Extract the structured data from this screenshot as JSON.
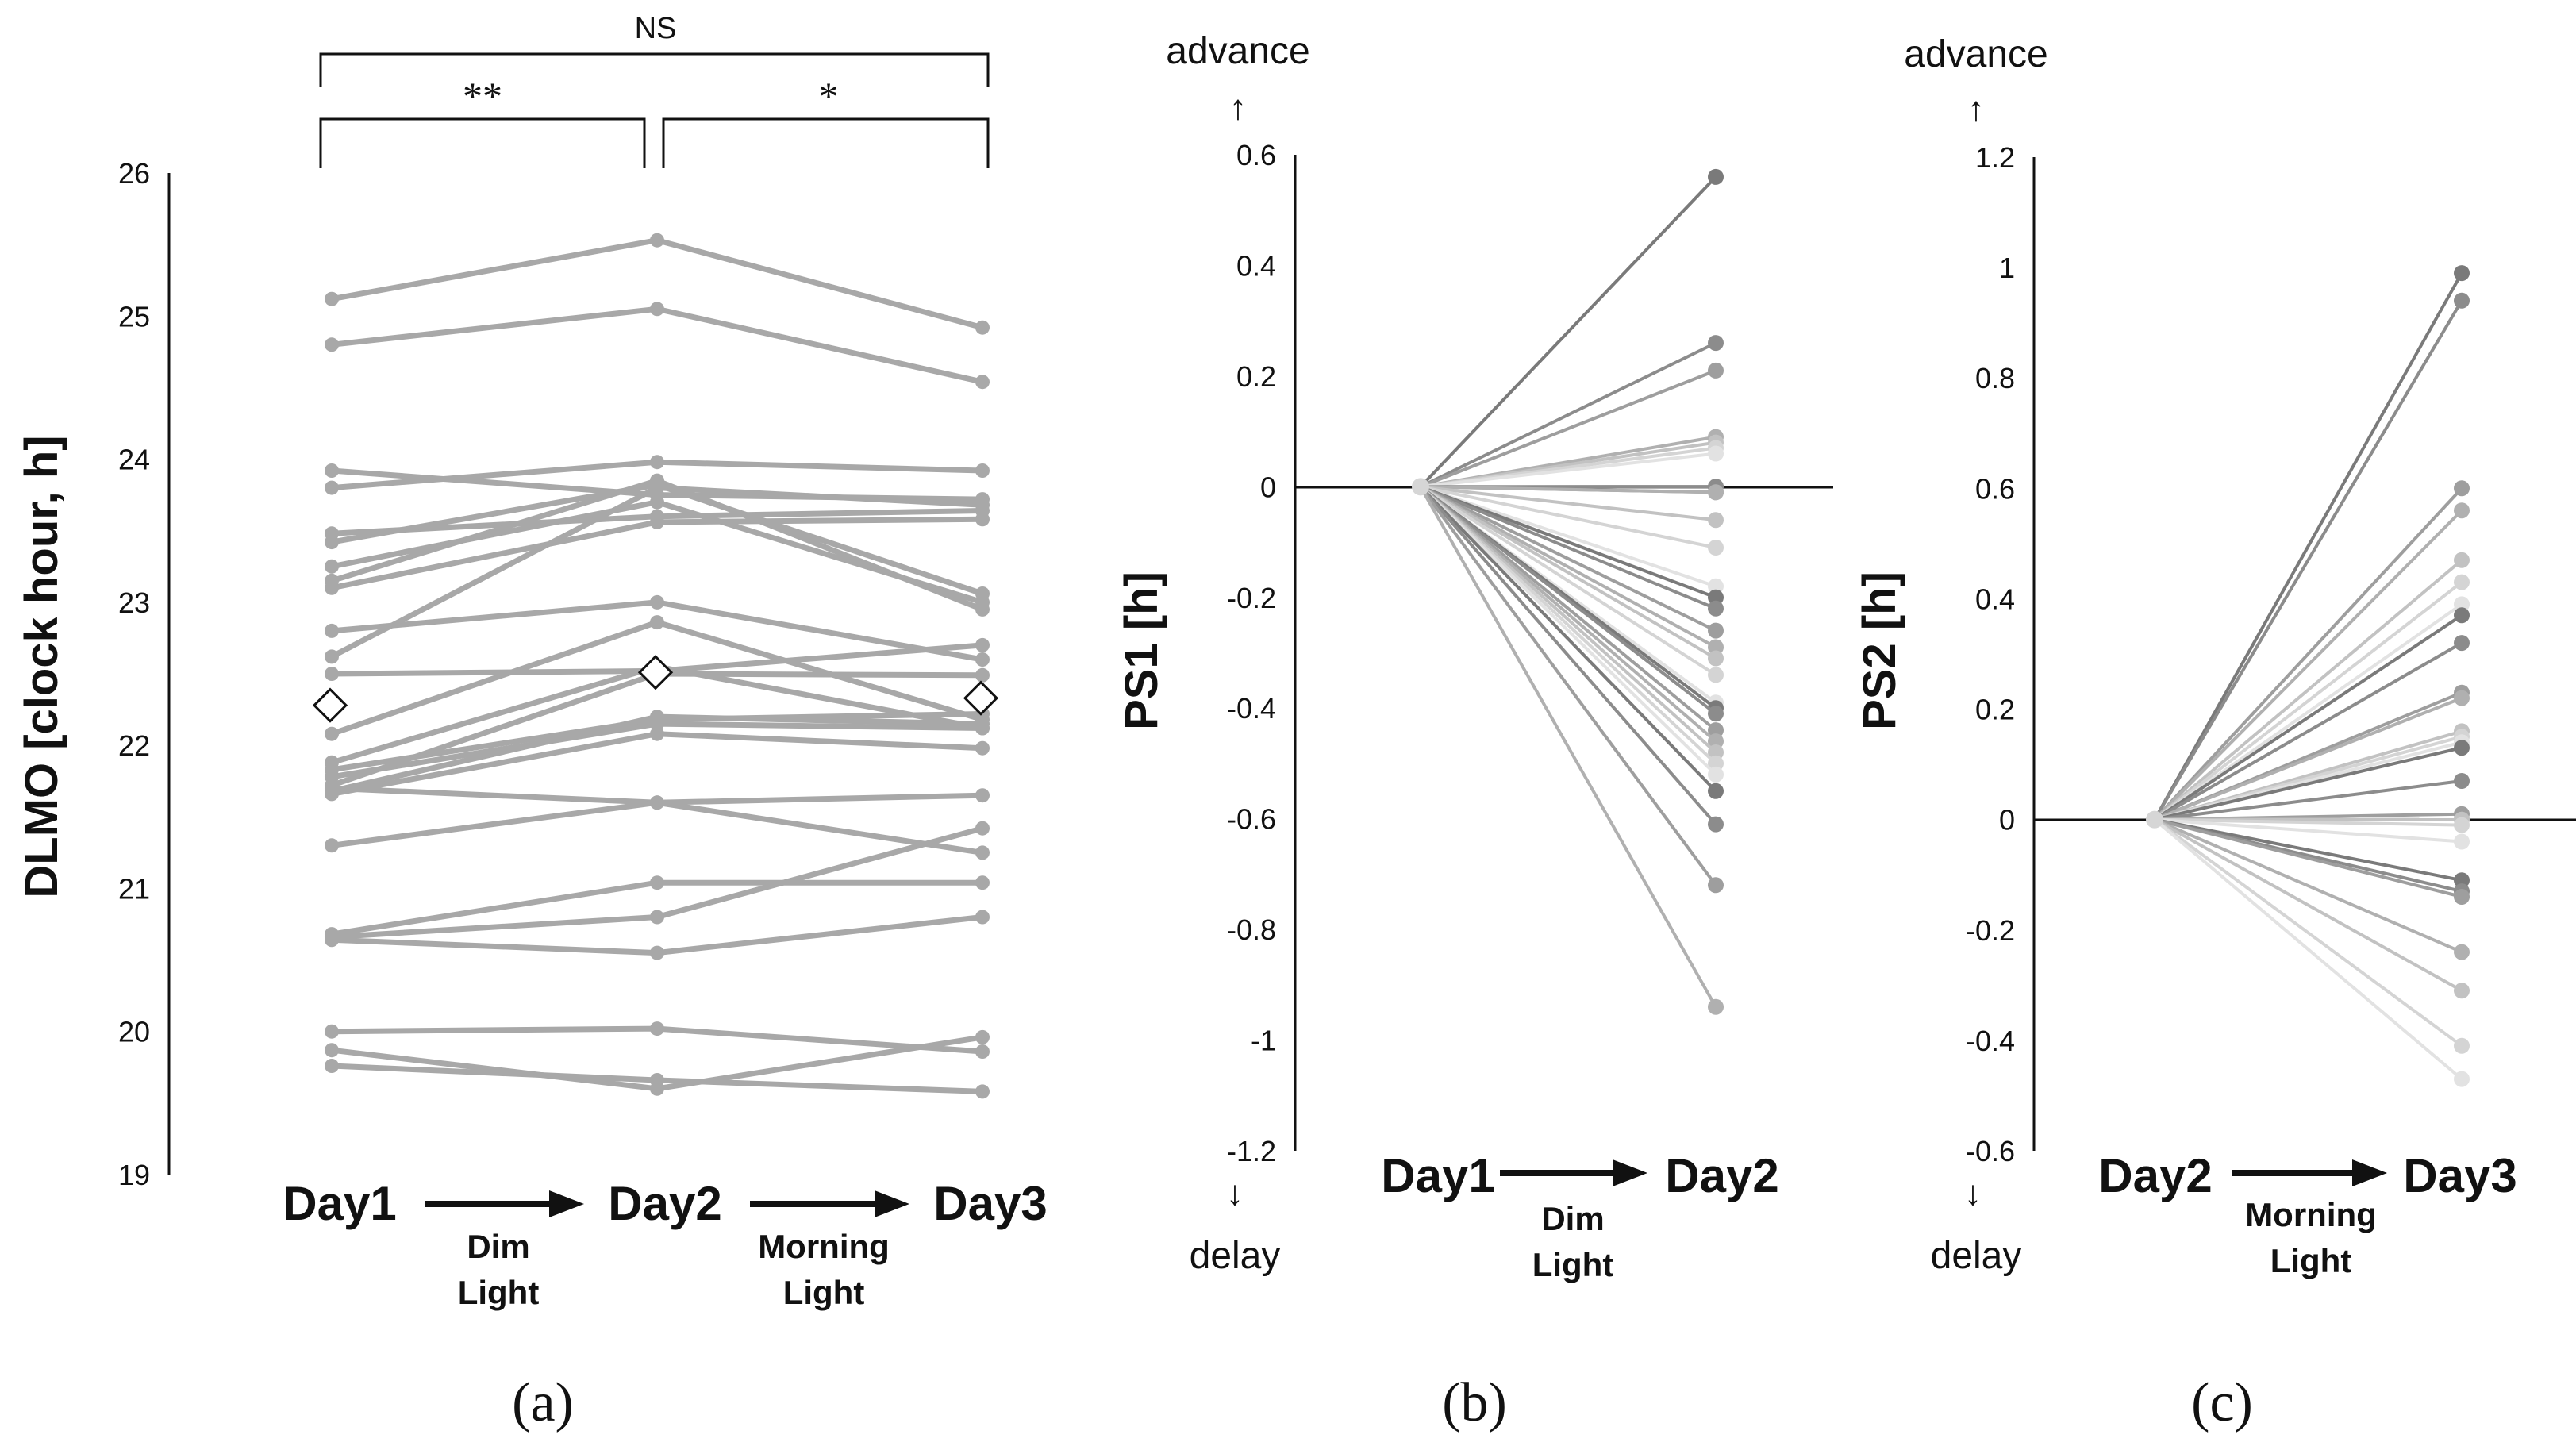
{
  "colors": {
    "line_a": "#a8a8a8",
    "axis": "#111111",
    "mean_fill": "#ffffff",
    "greys": [
      "#7a7a7a",
      "#8c8c8c",
      "#9e9e9e",
      "#b0b0b0",
      "#c2c2c2",
      "#d4d4d4",
      "#e2e2e2"
    ]
  },
  "chart_data": [
    {
      "id": "a",
      "type": "line",
      "panel_label": "(a)",
      "ylabel": "DLMO [clock hour, h]",
      "ylim": [
        19,
        26
      ],
      "yticks": [
        "19",
        "20",
        "21",
        "22",
        "23",
        "24",
        "25",
        "26"
      ],
      "x": [
        "Day1",
        "Day2",
        "Day3"
      ],
      "transitions": [
        [
          "Dim",
          "Light"
        ],
        [
          "Morning",
          "Light"
        ]
      ],
      "significance": [
        {
          "label": "**",
          "from": "Day1",
          "to": "Day2"
        },
        {
          "label": "*",
          "from": "Day2",
          "to": "Day3"
        },
        {
          "label": "NS",
          "from": "Day1",
          "to": "Day3"
        }
      ],
      "series": [
        {
          "values": [
            25.12,
            25.53,
            24.92
          ]
        },
        {
          "values": [
            24.8,
            25.05,
            24.54
          ]
        },
        {
          "values": [
            23.92,
            23.75,
            23.72
          ]
        },
        {
          "values": [
            23.8,
            23.98,
            23.92
          ]
        },
        {
          "values": [
            23.48,
            23.6,
            23.64
          ]
        },
        {
          "values": [
            23.42,
            23.82,
            23.06
          ]
        },
        {
          "values": [
            23.25,
            23.7,
            23.0
          ]
        },
        {
          "values": [
            23.15,
            23.85,
            22.95
          ]
        },
        {
          "values": [
            23.1,
            23.56,
            23.58
          ]
        },
        {
          "values": [
            22.8,
            23.0,
            22.6
          ]
        },
        {
          "values": [
            22.62,
            23.8,
            23.68
          ]
        },
        {
          "values": [
            22.5,
            22.52,
            22.7
          ]
        },
        {
          "values": [
            22.08,
            22.86,
            22.18
          ]
        },
        {
          "values": [
            21.88,
            22.55,
            22.12
          ]
        },
        {
          "values": [
            21.83,
            22.18,
            22.22
          ]
        },
        {
          "values": [
            21.78,
            22.15,
            22.12
          ]
        },
        {
          "values": [
            21.72,
            22.5,
            22.49
          ]
        },
        {
          "values": [
            21.68,
            22.2,
            22.15
          ]
        },
        {
          "values": [
            21.66,
            22.08,
            21.98
          ]
        },
        {
          "values": [
            21.7,
            21.6,
            21.65
          ]
        },
        {
          "values": [
            21.3,
            21.6,
            21.25
          ]
        },
        {
          "values": [
            20.68,
            21.04,
            21.04
          ]
        },
        {
          "values": [
            20.66,
            20.8,
            21.42
          ]
        },
        {
          "values": [
            20.64,
            20.55,
            20.8
          ]
        },
        {
          "values": [
            20.0,
            20.02,
            19.86
          ]
        },
        {
          "values": [
            19.87,
            19.6,
            19.96
          ]
        },
        {
          "values": [
            19.76,
            19.66,
            19.58
          ]
        }
      ],
      "mean": [
        22.28,
        22.51,
        22.33
      ]
    },
    {
      "id": "b",
      "type": "line",
      "panel_label": "(b)",
      "ylabel": "PS1 [h]",
      "ylim": [
        -1.2,
        0.6
      ],
      "yticks": [
        "-1.2",
        "-1",
        "-0.8",
        "-0.6",
        "-0.4",
        "-0.2",
        "0",
        "0.2",
        "0.4",
        "0.6"
      ],
      "x": [
        "Day1",
        "Day2"
      ],
      "transition": [
        "Dim",
        "Light"
      ],
      "advance_label": "advance",
      "delay_label": "delay",
      "up_arrow": "↑",
      "down_arrow": "↓",
      "end_values": [
        0.56,
        0.26,
        0.21,
        0.09,
        0.08,
        0.07,
        0.06,
        0.0,
        0.0,
        -0.01,
        -0.01,
        -0.06,
        -0.11,
        -0.18,
        -0.2,
        -0.22,
        -0.26,
        -0.29,
        -0.31,
        -0.34,
        -0.39,
        -0.4,
        -0.41,
        -0.44,
        -0.46,
        -0.48,
        -0.5,
        -0.52,
        -0.55,
        -0.61,
        -0.72,
        -0.94
      ]
    },
    {
      "id": "c",
      "type": "line",
      "panel_label": "(c)",
      "ylabel": "PS2 [h]",
      "ylim": [
        -0.6,
        1.2
      ],
      "yticks": [
        "-0.6",
        "-0.4",
        "-0.2",
        "0",
        "0.2",
        "0.4",
        "0.6",
        "0.8",
        "1",
        "1.2"
      ],
      "x": [
        "Day2",
        "Day3"
      ],
      "transition": [
        "Morning",
        "Light"
      ],
      "advance_label": "advance",
      "delay_label": "delay",
      "up_arrow": "↑",
      "down_arrow": "↓",
      "end_values": [
        0.99,
        0.94,
        0.6,
        0.56,
        0.47,
        0.43,
        0.39,
        0.37,
        0.32,
        0.23,
        0.22,
        0.16,
        0.15,
        0.14,
        0.13,
        0.07,
        0.01,
        0.0,
        0.0,
        -0.01,
        -0.04,
        -0.11,
        -0.13,
        -0.14,
        -0.24,
        -0.31,
        -0.41,
        -0.47
      ]
    }
  ]
}
